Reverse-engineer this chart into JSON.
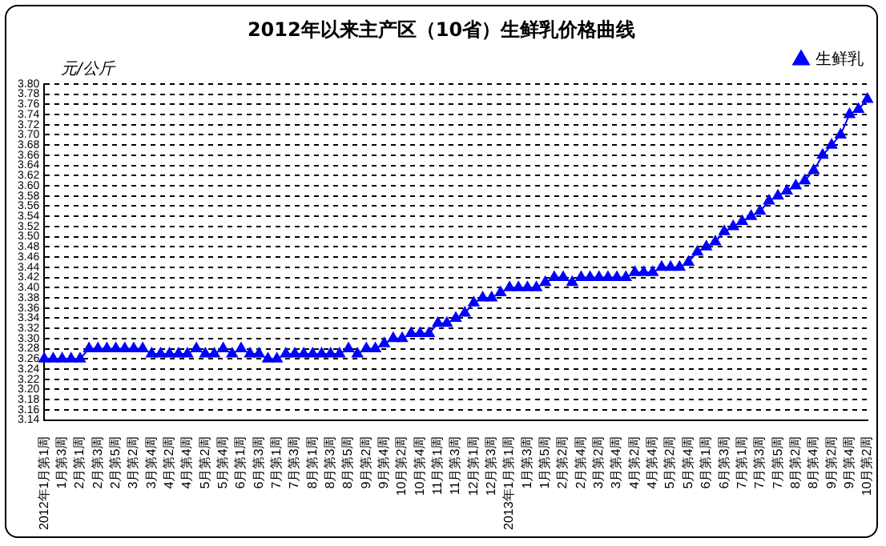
{
  "chart_data": {
    "type": "line",
    "title": "2012年以来主产区（10省）生鲜乳价格曲线",
    "ylabel": "元/公斤",
    "categories": [
      "2012年1月第1周",
      null,
      "1月第3周",
      null,
      "2月第1周",
      null,
      "2月第3周",
      null,
      "2月第5周",
      null,
      "3月第2周",
      null,
      "3月第4周",
      null,
      "4月第2周",
      null,
      "4月第4周",
      null,
      "5月第2周",
      null,
      "5月第4周",
      null,
      "6月第1周",
      null,
      "6月第3周",
      null,
      "7月第1周",
      null,
      "7月第3周",
      null,
      "8月第1周",
      null,
      "8月第3周",
      null,
      "8月第5周",
      null,
      "9月第2周",
      null,
      "9月第4周",
      null,
      "10月第2周",
      null,
      "10月第4周",
      null,
      "11月第1周",
      null,
      "11月第3周",
      null,
      "12月第1周",
      null,
      "12月第3周",
      null,
      "2013年1月第1周",
      null,
      "1月第3周",
      null,
      "1月第5周",
      null,
      "2月第2周",
      null,
      "2月第4周",
      null,
      "3月第2周",
      null,
      "3月第4周",
      null,
      "4月第2周",
      null,
      "4月第4周",
      null,
      "5月第2周",
      null,
      "5月第4周",
      null,
      "6月第1周",
      null,
      "6月第3周",
      null,
      "7月第1周",
      null,
      "7月第3周",
      null,
      "7月第5周",
      null,
      "8月第2周",
      null,
      "8月第4周",
      null,
      "9月第2周",
      null,
      "9月第4周",
      null,
      "10月第2周"
    ],
    "series": [
      {
        "name": "生鲜乳",
        "color": "#0000ff",
        "values": [
          3.26,
          3.26,
          3.26,
          3.26,
          3.26,
          3.28,
          3.28,
          3.28,
          3.28,
          3.28,
          3.28,
          3.28,
          3.27,
          3.27,
          3.27,
          3.27,
          3.27,
          3.28,
          3.27,
          3.27,
          3.28,
          3.27,
          3.28,
          3.27,
          3.27,
          3.26,
          3.26,
          3.27,
          3.27,
          3.27,
          3.27,
          3.27,
          3.27,
          3.27,
          3.28,
          3.27,
          3.28,
          3.28,
          3.29,
          3.3,
          3.3,
          3.31,
          3.31,
          3.31,
          3.33,
          3.33,
          3.34,
          3.35,
          3.37,
          3.38,
          3.38,
          3.39,
          3.4,
          3.4,
          3.4,
          3.4,
          3.41,
          3.42,
          3.42,
          3.41,
          3.42,
          3.42,
          3.42,
          3.42,
          3.42,
          3.42,
          3.43,
          3.43,
          3.43,
          3.44,
          3.44,
          3.44,
          3.45,
          3.47,
          3.48,
          3.49,
          3.51,
          3.52,
          3.53,
          3.54,
          3.55,
          3.57,
          3.58,
          3.59,
          3.6,
          3.61,
          3.63,
          3.66,
          3.68,
          3.7,
          3.74,
          3.75,
          3.77
        ]
      }
    ],
    "ylim": [
      3.14,
      3.8
    ],
    "yticks": [
      {
        "value": 3.14,
        "label": "3.14"
      },
      {
        "value": 3.16,
        "label": "3.16"
      },
      {
        "value": 3.18,
        "label": "3.18"
      },
      {
        "value": 3.2,
        "label": "3.20"
      },
      {
        "value": 3.22,
        "label": "3.22"
      },
      {
        "value": 3.24,
        "label": "3.24"
      },
      {
        "value": 3.26,
        "label": "3.26"
      },
      {
        "value": 3.28,
        "label": "3.28"
      },
      {
        "value": 3.3,
        "label": "3.30"
      },
      {
        "value": 3.32,
        "label": "3.32"
      },
      {
        "value": 3.34,
        "label": "3.34"
      },
      {
        "value": 3.36,
        "label": "3.36"
      },
      {
        "value": 3.38,
        "label": "3.38"
      },
      {
        "value": 3.4,
        "label": "3.40"
      },
      {
        "value": 3.42,
        "label": "3.42"
      },
      {
        "value": 3.44,
        "label": "3.44"
      },
      {
        "value": 3.46,
        "label": "3.46"
      },
      {
        "value": 3.48,
        "label": "3.48"
      },
      {
        "value": 3.5,
        "label": "3.50"
      },
      {
        "value": 3.52,
        "label": "3.52"
      },
      {
        "value": 3.54,
        "label": "3.54"
      },
      {
        "value": 3.56,
        "label": "3.56"
      },
      {
        "value": 3.58,
        "label": "3.58"
      },
      {
        "value": 3.6,
        "label": "3.60"
      },
      {
        "value": 3.62,
        "label": "3.62"
      },
      {
        "value": 3.64,
        "label": "3.64"
      },
      {
        "value": 3.66,
        "label": "3.66"
      },
      {
        "value": 3.68,
        "label": "3.68"
      },
      {
        "value": 3.7,
        "label": "3.70"
      },
      {
        "value": 3.72,
        "label": "3.72"
      },
      {
        "value": 3.74,
        "label": "3.74"
      },
      {
        "value": 3.76,
        "label": "3.76"
      },
      {
        "value": 3.78,
        "label": "3.78"
      },
      {
        "value": 3.8,
        "label": "3.80"
      }
    ],
    "grid": "y",
    "legend": "top right",
    "marker": "triangle",
    "line_style": "solid"
  }
}
